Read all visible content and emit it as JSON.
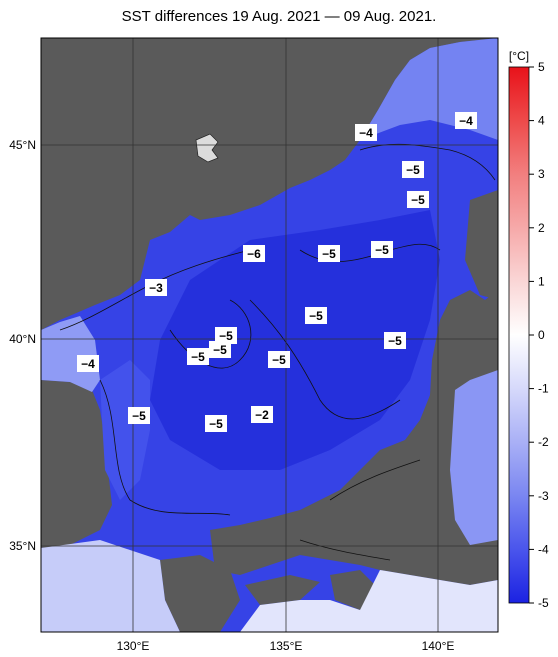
{
  "title": "SST differences 19 Aug. 2021 — 09 Aug. 2021.",
  "colorbar": {
    "unit": "[°C]",
    "labels": [
      "5",
      "4",
      "3",
      "2",
      "1",
      "0",
      "-1",
      "-2",
      "-3",
      "-4",
      "-5"
    ]
  },
  "axes": {
    "lat_labels": [
      "45°N",
      "40°N",
      "35°N"
    ],
    "lon_labels": [
      "130°E",
      "135°E",
      "140°E"
    ]
  },
  "contour_labels": [
    "-4",
    "-4",
    "-5",
    "-5",
    "-6",
    "-5",
    "-5",
    "-3",
    "-5",
    "-5",
    "-5",
    "-5",
    "-5",
    "-5",
    "-4",
    "-5",
    "-5",
    "-2"
  ],
  "colors": {
    "land": "#5a5a5a",
    "sea_deep": "#2a35e0",
    "sea_mid": "#4d5cf0",
    "sea_light": "#8f9bf5",
    "sea_pale": "#d9ddfb"
  }
}
